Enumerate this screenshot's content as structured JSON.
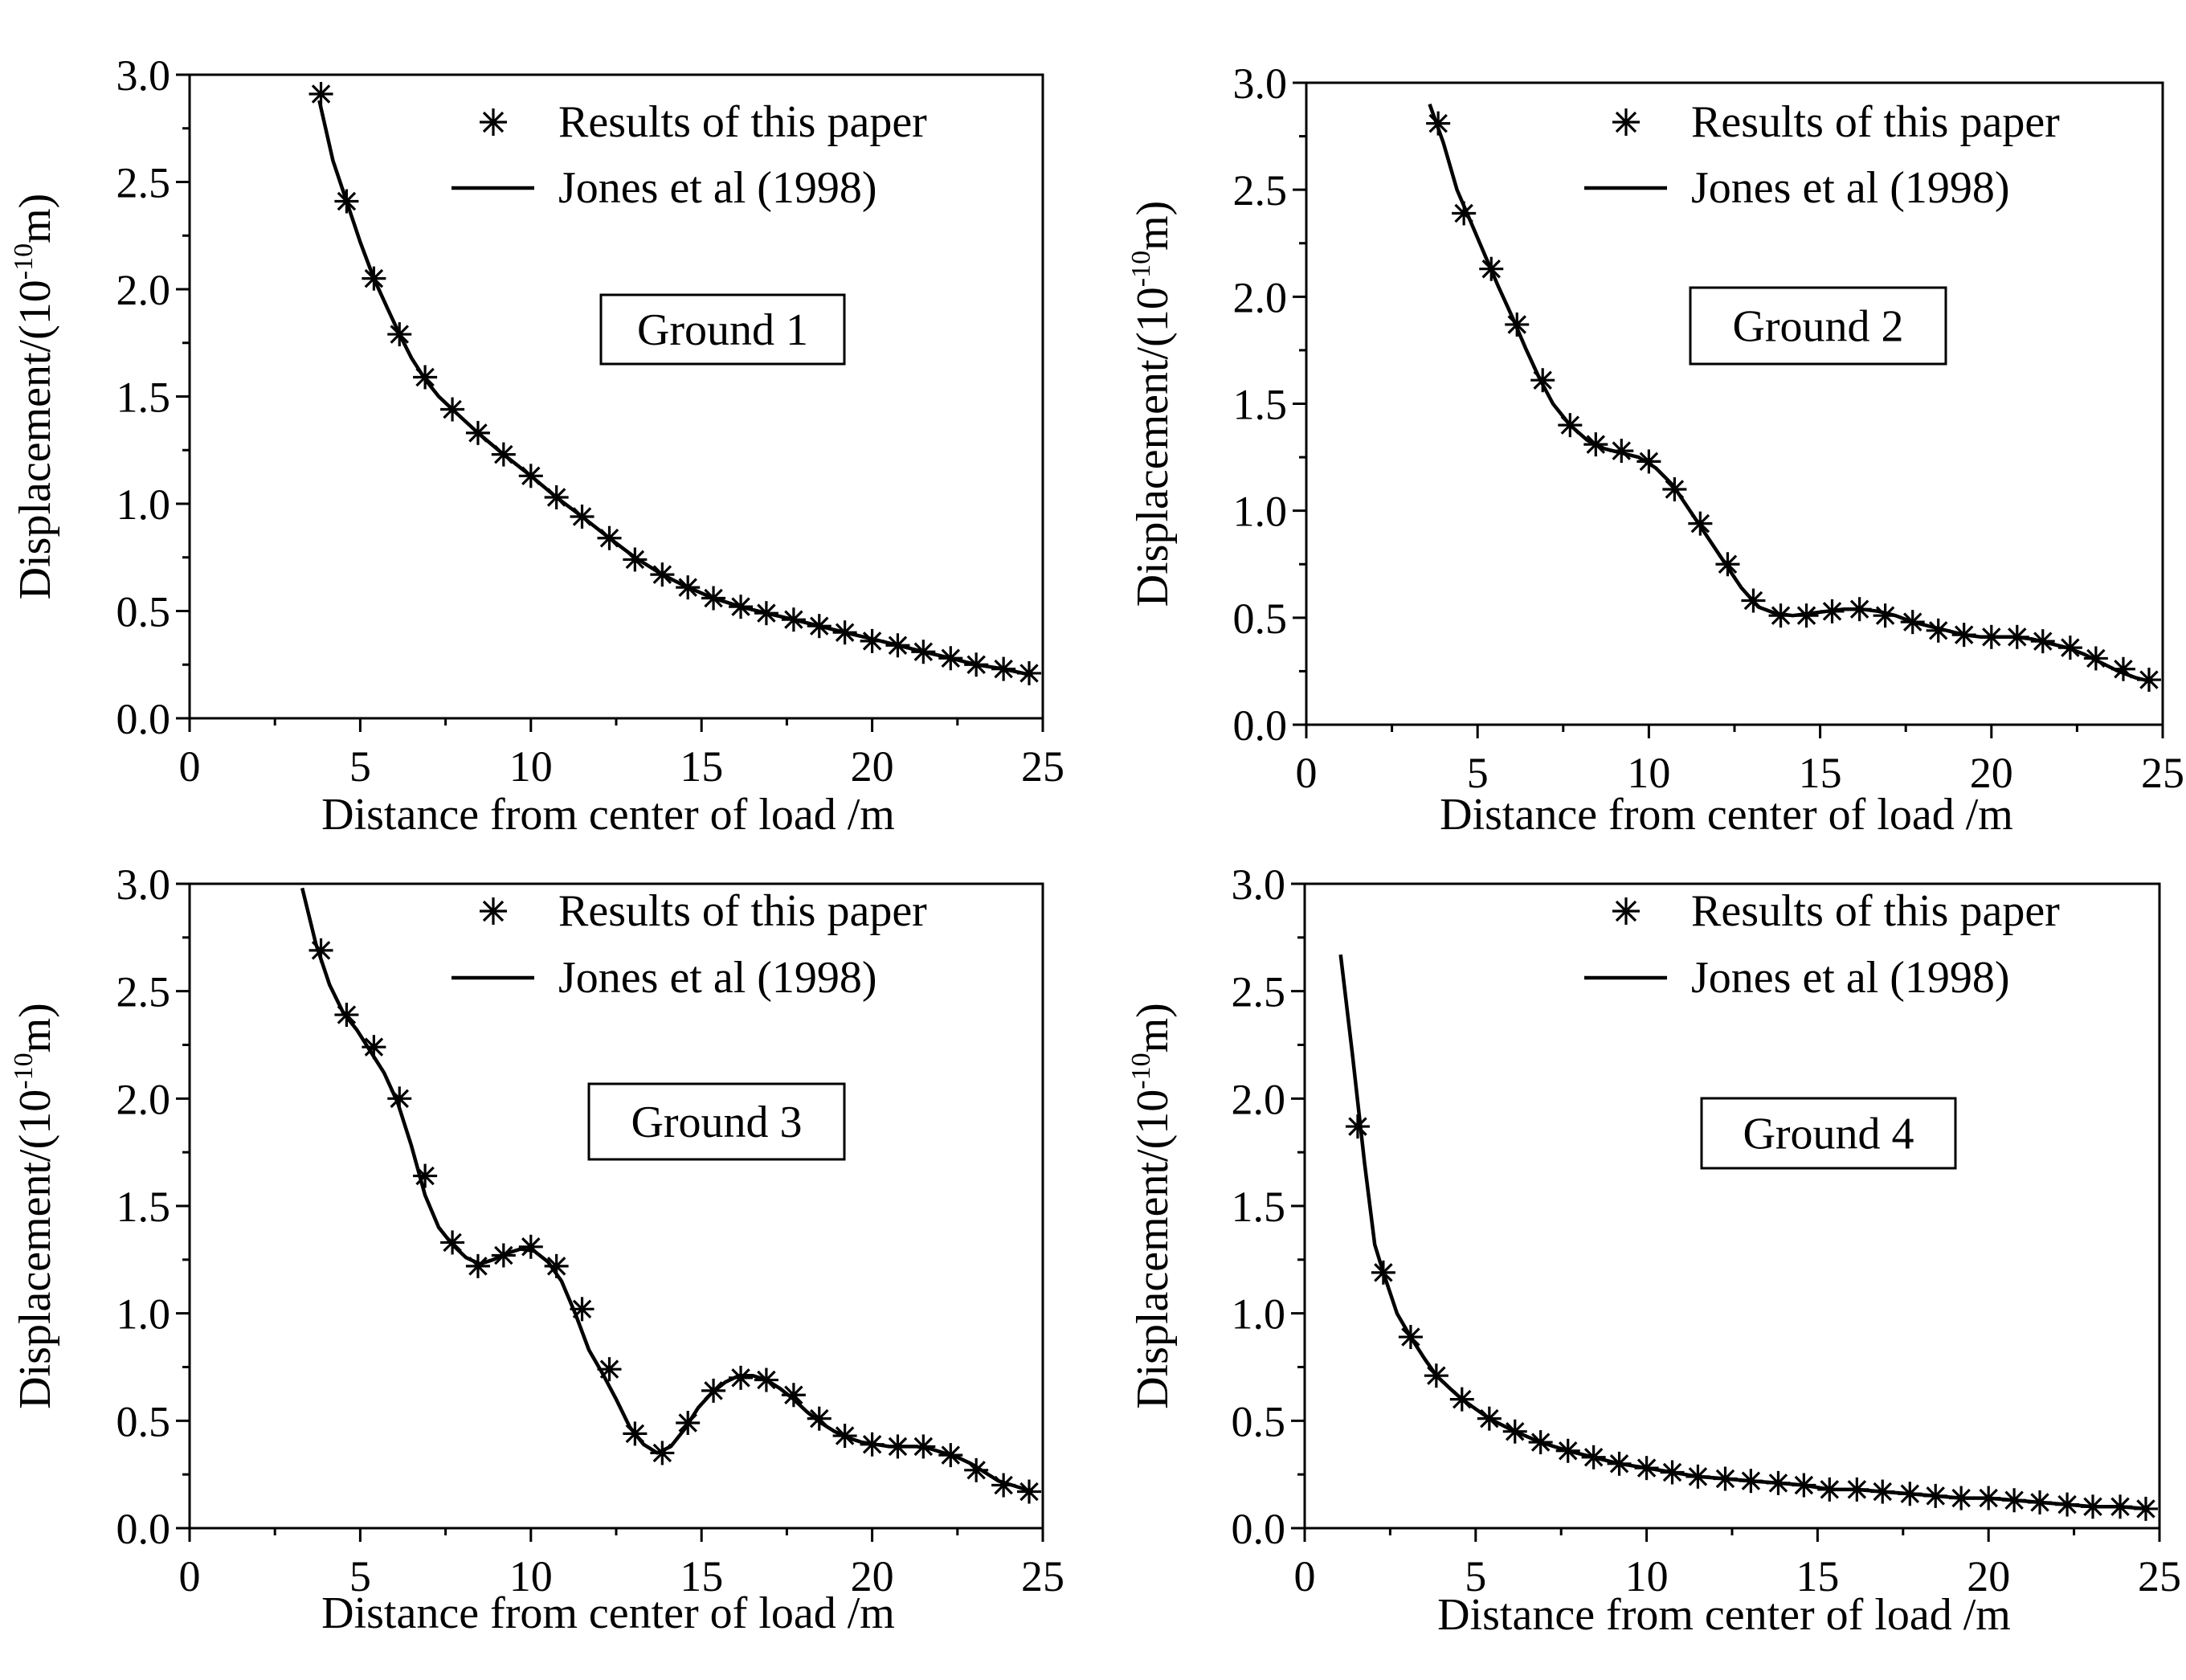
{
  "chart_data": [
    {
      "type": "line",
      "panel": "top-left",
      "annotation": "Ground 1",
      "xlabel": "Distance from center of load /m",
      "ylabel_main": "Displacement/(10",
      "ylabel_exp": "-10",
      "ylabel_tail": "m)",
      "xlim": [
        0,
        25
      ],
      "ylim": [
        0,
        3
      ],
      "xticks": [
        0,
        5,
        10,
        15,
        20,
        25
      ],
      "xtick_labels": [
        "0",
        "5",
        "10",
        "15",
        "20",
        "25"
      ],
      "yticks": [
        0,
        0.5,
        1,
        1.5,
        2,
        2.5,
        3
      ],
      "ytick_labels": [
        "0.0",
        "0.5",
        "1.0",
        "1.5",
        "2.0",
        "2.5",
        "3.0"
      ],
      "legend_position": "top-right",
      "series": [
        {
          "name": "Results of this paper",
          "style": "markers",
          "x": [
            3.85,
            4.6,
            5.4,
            6.15,
            6.9,
            7.7,
            8.45,
            9.2,
            10.0,
            10.75,
            11.5,
            12.3,
            13.05,
            13.85,
            14.6,
            15.35,
            16.15,
            16.9,
            17.7,
            18.45,
            19.2,
            20.0,
            20.75,
            21.5,
            22.3,
            23.05,
            23.85,
            24.6
          ],
          "y": [
            2.91,
            2.41,
            2.05,
            1.79,
            1.59,
            1.44,
            1.33,
            1.23,
            1.13,
            1.03,
            0.94,
            0.84,
            0.74,
            0.67,
            0.61,
            0.56,
            0.52,
            0.49,
            0.46,
            0.43,
            0.4,
            0.36,
            0.34,
            0.31,
            0.28,
            0.25,
            0.23,
            0.21
          ]
        },
        {
          "name": "Jones et al (1998)",
          "style": "line",
          "x": [
            3.8,
            4.2,
            4.6,
            5.0,
            5.4,
            5.8,
            6.15,
            6.5,
            6.9,
            7.3,
            7.7,
            8.45,
            9.2,
            10.0,
            10.75,
            11.5,
            12.3,
            13.05,
            13.85,
            14.6,
            15.35,
            16.15,
            16.9,
            17.7,
            18.45,
            19.2,
            20.0,
            20.75,
            21.5,
            22.3,
            23.05,
            23.85,
            24.7
          ],
          "y": [
            2.88,
            2.6,
            2.41,
            2.22,
            2.05,
            1.91,
            1.79,
            1.68,
            1.58,
            1.5,
            1.44,
            1.33,
            1.23,
            1.13,
            1.03,
            0.94,
            0.84,
            0.75,
            0.67,
            0.61,
            0.56,
            0.52,
            0.49,
            0.46,
            0.43,
            0.4,
            0.37,
            0.34,
            0.31,
            0.28,
            0.25,
            0.23,
            0.2
          ]
        }
      ]
    },
    {
      "type": "line",
      "panel": "top-right",
      "annotation": "Ground 2",
      "xlabel": "Distance from center of load /m",
      "ylabel_main": "Displacement/(10",
      "ylabel_exp": "-10",
      "ylabel_tail": "m)",
      "xlim": [
        0,
        25
      ],
      "ylim": [
        0,
        3
      ],
      "xticks": [
        0,
        5,
        10,
        15,
        20,
        25
      ],
      "xtick_labels": [
        "0",
        "5",
        "10",
        "15",
        "20",
        "25"
      ],
      "yticks": [
        0,
        0.5,
        1,
        1.5,
        2,
        2.5,
        3
      ],
      "ytick_labels": [
        "0.0",
        "0.5",
        "1.0",
        "1.5",
        "2.0",
        "2.5",
        "3.0"
      ],
      "legend_position": "top-right",
      "series": [
        {
          "name": "Results of this paper",
          "style": "markers",
          "x": [
            3.85,
            4.6,
            5.4,
            6.15,
            6.9,
            7.7,
            8.45,
            9.2,
            10.0,
            10.75,
            11.5,
            12.3,
            13.05,
            13.85,
            14.6,
            15.35,
            16.15,
            16.9,
            17.7,
            18.45,
            19.2,
            20.0,
            20.75,
            21.5,
            22.3,
            23.05,
            23.85,
            24.6
          ],
          "y": [
            2.81,
            2.39,
            2.13,
            1.87,
            1.61,
            1.4,
            1.31,
            1.28,
            1.23,
            1.1,
            0.94,
            0.75,
            0.58,
            0.51,
            0.51,
            0.53,
            0.54,
            0.51,
            0.48,
            0.44,
            0.42,
            0.41,
            0.41,
            0.39,
            0.36,
            0.31,
            0.26,
            0.21
          ]
        },
        {
          "name": "Jones et al (1998)",
          "style": "line",
          "x": [
            3.6,
            4.0,
            4.4,
            4.8,
            5.2,
            5.6,
            6.0,
            6.4,
            6.8,
            7.2,
            7.7,
            8.2,
            8.7,
            9.2,
            9.7,
            10.2,
            10.7,
            11.2,
            11.7,
            12.2,
            12.7,
            13.2,
            13.7,
            14.2,
            14.7,
            15.2,
            15.7,
            16.2,
            16.7,
            17.2,
            17.7,
            18.2,
            18.7,
            19.2,
            19.7,
            20.2,
            20.7,
            21.2,
            21.7,
            22.2,
            22.7,
            23.2,
            23.7,
            24.2,
            24.7
          ],
          "y": [
            2.9,
            2.72,
            2.5,
            2.35,
            2.2,
            2.05,
            1.91,
            1.76,
            1.62,
            1.5,
            1.4,
            1.33,
            1.29,
            1.27,
            1.25,
            1.2,
            1.12,
            1.0,
            0.88,
            0.76,
            0.64,
            0.55,
            0.52,
            0.51,
            0.52,
            0.53,
            0.54,
            0.54,
            0.53,
            0.51,
            0.48,
            0.46,
            0.44,
            0.42,
            0.41,
            0.41,
            0.41,
            0.4,
            0.38,
            0.36,
            0.33,
            0.29,
            0.25,
            0.22,
            0.2
          ]
        }
      ]
    },
    {
      "type": "line",
      "panel": "bottom-left",
      "annotation": "Ground 3",
      "xlabel": "Distance from center of load /m",
      "ylabel_main": "Displacement/(10",
      "ylabel_exp": "-10",
      "ylabel_tail": "m)",
      "xlim": [
        0,
        25
      ],
      "ylim": [
        0,
        3
      ],
      "xticks": [
        0,
        5,
        10,
        15,
        20,
        25
      ],
      "xtick_labels": [
        "0",
        "5",
        "10",
        "15",
        "20",
        "25"
      ],
      "yticks": [
        0,
        0.5,
        1,
        1.5,
        2,
        2.5,
        3
      ],
      "ytick_labels": [
        "0.0",
        "0.5",
        "1.0",
        "1.5",
        "2.0",
        "2.5",
        "3.0"
      ],
      "legend_position": "top-right",
      "series": [
        {
          "name": "Results of this paper",
          "style": "markers",
          "x": [
            3.85,
            4.6,
            5.4,
            6.15,
            6.9,
            7.7,
            8.45,
            9.2,
            10.0,
            10.75,
            11.5,
            12.3,
            13.05,
            13.85,
            14.6,
            15.35,
            16.15,
            16.9,
            17.7,
            18.45,
            19.2,
            20.0,
            20.75,
            21.5,
            22.3,
            23.05,
            23.85,
            24.6
          ],
          "y": [
            2.69,
            2.39,
            2.24,
            2.0,
            1.64,
            1.33,
            1.22,
            1.27,
            1.31,
            1.22,
            1.02,
            0.74,
            0.44,
            0.35,
            0.49,
            0.64,
            0.7,
            0.69,
            0.62,
            0.51,
            0.43,
            0.39,
            0.38,
            0.38,
            0.34,
            0.27,
            0.2,
            0.17
          ]
        },
        {
          "name": "Jones et al (1998)",
          "style": "line",
          "x": [
            3.3,
            3.7,
            4.1,
            4.5,
            4.9,
            5.3,
            5.7,
            6.1,
            6.5,
            6.9,
            7.3,
            7.7,
            8.1,
            8.5,
            8.9,
            9.3,
            9.7,
            10.1,
            10.5,
            10.9,
            11.3,
            11.7,
            12.1,
            12.5,
            12.9,
            13.3,
            13.7,
            14.1,
            14.5,
            14.9,
            15.3,
            15.7,
            16.1,
            16.5,
            16.9,
            17.3,
            17.7,
            18.1,
            18.5,
            18.9,
            19.3,
            19.7,
            20.1,
            20.5,
            20.9,
            21.3,
            21.7,
            22.1,
            22.5,
            22.9,
            23.3,
            23.7,
            24.1,
            24.5,
            24.7
          ],
          "y": [
            2.98,
            2.72,
            2.53,
            2.4,
            2.32,
            2.22,
            2.12,
            1.98,
            1.78,
            1.55,
            1.4,
            1.32,
            1.26,
            1.23,
            1.25,
            1.28,
            1.3,
            1.29,
            1.24,
            1.15,
            1.0,
            0.83,
            0.72,
            0.6,
            0.47,
            0.39,
            0.35,
            0.38,
            0.46,
            0.56,
            0.63,
            0.68,
            0.71,
            0.71,
            0.69,
            0.65,
            0.6,
            0.54,
            0.49,
            0.45,
            0.42,
            0.4,
            0.39,
            0.38,
            0.38,
            0.38,
            0.37,
            0.35,
            0.33,
            0.3,
            0.26,
            0.22,
            0.2,
            0.18,
            0.17
          ]
        }
      ]
    },
    {
      "type": "line",
      "panel": "bottom-right",
      "annotation": "Ground 4",
      "xlabel": "Distance from center of load /m",
      "ylabel_main": "Displacement/(10",
      "ylabel_exp": "-10",
      "ylabel_tail": "m)",
      "xlim": [
        0,
        25
      ],
      "ylim": [
        0,
        3
      ],
      "xticks": [
        0,
        5,
        10,
        15,
        20,
        25
      ],
      "xtick_labels": [
        "0",
        "5",
        "10",
        "15",
        "20",
        "25"
      ],
      "yticks": [
        0,
        0.5,
        1,
        1.5,
        2,
        2.5,
        3
      ],
      "ytick_labels": [
        "0.0",
        "0.5",
        "1.0",
        "1.5",
        "2.0",
        "2.5",
        "3.0"
      ],
      "legend_position": "top-right",
      "series": [
        {
          "name": "Results of this paper",
          "style": "markers",
          "x": [
            1.55,
            2.3,
            3.1,
            3.85,
            4.6,
            5.4,
            6.15,
            6.9,
            7.7,
            8.45,
            9.2,
            10.0,
            10.75,
            11.5,
            12.3,
            13.05,
            13.85,
            14.6,
            15.35,
            16.15,
            16.9,
            17.7,
            18.45,
            19.2,
            20.0,
            20.75,
            21.5,
            22.3,
            23.05,
            23.85,
            24.6
          ],
          "y": [
            1.87,
            1.19,
            0.89,
            0.71,
            0.6,
            0.51,
            0.45,
            0.4,
            0.36,
            0.33,
            0.3,
            0.28,
            0.26,
            0.24,
            0.23,
            0.22,
            0.21,
            0.2,
            0.18,
            0.18,
            0.17,
            0.16,
            0.15,
            0.14,
            0.14,
            0.13,
            0.12,
            0.11,
            0.1,
            0.1,
            0.09
          ]
        },
        {
          "name": "Jones et al (1998)",
          "style": "line",
          "x": [
            1.05,
            1.4,
            1.75,
            2.05,
            2.3,
            2.7,
            3.1,
            3.5,
            3.85,
            4.25,
            4.6,
            5.4,
            6.15,
            6.9,
            7.7,
            8.45,
            9.2,
            10.0,
            10.75,
            11.5,
            12.3,
            13.05,
            13.85,
            14.6,
            15.35,
            16.15,
            16.9,
            17.7,
            18.45,
            19.2,
            20.0,
            20.75,
            21.5,
            22.3,
            23.05,
            23.85,
            24.6
          ],
          "y": [
            2.67,
            2.2,
            1.7,
            1.32,
            1.19,
            1.0,
            0.89,
            0.79,
            0.71,
            0.65,
            0.6,
            0.51,
            0.45,
            0.4,
            0.36,
            0.33,
            0.3,
            0.28,
            0.26,
            0.24,
            0.23,
            0.22,
            0.21,
            0.2,
            0.18,
            0.18,
            0.17,
            0.16,
            0.15,
            0.14,
            0.14,
            0.13,
            0.12,
            0.11,
            0.1,
            0.1,
            0.09
          ]
        }
      ]
    }
  ]
}
